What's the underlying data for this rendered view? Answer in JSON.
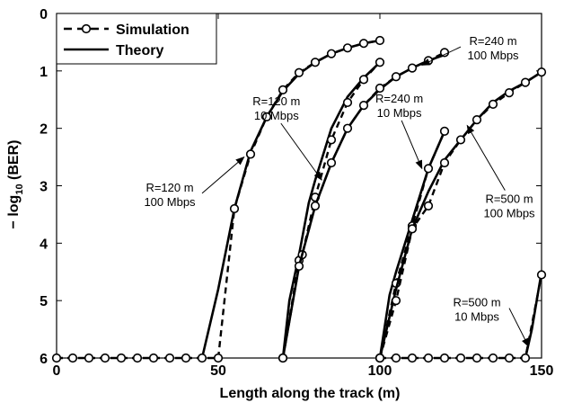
{
  "chart_data": {
    "type": "line",
    "title": "",
    "xlabel": "Length along the track (m)",
    "ylabel_prefix": "− log",
    "ylabel_sub": "10",
    "ylabel_suffix": " (BER)",
    "xlim": [
      0,
      150
    ],
    "ylim": [
      0,
      6
    ],
    "y_inverted": true,
    "x_ticks": [
      "0",
      "50",
      "100",
      "150"
    ],
    "y_ticks": [
      "0",
      "1",
      "2",
      "3",
      "4",
      "5",
      "6"
    ],
    "grid": false,
    "legend": {
      "placement": "top-left",
      "entries": [
        {
          "label": "Simulation",
          "style": "dashed-circle"
        },
        {
          "label": "Theory",
          "style": "solid"
        }
      ]
    },
    "series": [
      {
        "group": "R=120 m, 100 Mbps",
        "theory": [
          [
            45,
            6
          ],
          [
            50,
            4.8
          ],
          [
            55,
            3.4
          ],
          [
            58,
            2.8
          ],
          [
            60,
            2.4
          ],
          [
            65,
            1.8
          ],
          [
            70,
            1.35
          ],
          [
            75,
            1.05
          ],
          [
            80,
            0.85
          ],
          [
            85,
            0.7
          ],
          [
            90,
            0.6
          ],
          [
            95,
            0.52
          ],
          [
            100,
            0.47
          ]
        ],
        "simulation": [
          [
            0,
            6
          ],
          [
            5,
            6
          ],
          [
            10,
            6
          ],
          [
            15,
            6
          ],
          [
            20,
            6
          ],
          [
            25,
            6
          ],
          [
            30,
            6
          ],
          [
            35,
            6
          ],
          [
            40,
            6
          ],
          [
            45,
            6
          ],
          [
            50,
            6
          ],
          [
            55,
            3.4
          ],
          [
            60,
            2.45
          ],
          [
            65,
            1.8
          ],
          [
            70,
            1.33
          ],
          [
            75,
            1.03
          ],
          [
            80,
            0.85
          ],
          [
            85,
            0.7
          ],
          [
            90,
            0.6
          ],
          [
            95,
            0.52
          ],
          [
            100,
            0.47
          ]
        ]
      },
      {
        "group": "R=120 m, 10 Mbps",
        "theory": [
          [
            70,
            6
          ],
          [
            72,
            5
          ],
          [
            75,
            4.2
          ],
          [
            78,
            3.3
          ],
          [
            80,
            2.9
          ],
          [
            85,
            2.0
          ],
          [
            90,
            1.45
          ],
          [
            95,
            1.12
          ],
          [
            100,
            0.85
          ]
        ],
        "simulation": [
          [
            70,
            6
          ],
          [
            75,
            4.3
          ],
          [
            76,
            4.2
          ],
          [
            80,
            3.2
          ],
          [
            85,
            2.2
          ],
          [
            90,
            1.55
          ],
          [
            95,
            1.15
          ],
          [
            100,
            0.85
          ]
        ]
      },
      {
        "group": "R=240 m, 100 Mbps",
        "theory": [
          [
            70,
            6
          ],
          [
            75,
            4.4
          ],
          [
            80,
            3.35
          ],
          [
            85,
            2.6
          ],
          [
            90,
            2.0
          ],
          [
            95,
            1.6
          ],
          [
            100,
            1.32
          ],
          [
            105,
            1.1
          ],
          [
            110,
            0.95
          ],
          [
            115,
            0.82
          ],
          [
            120,
            0.72
          ]
        ],
        "simulation": [
          [
            70,
            6
          ],
          [
            75,
            4.4
          ],
          [
            80,
            3.35
          ],
          [
            85,
            2.6
          ],
          [
            90,
            2.0
          ],
          [
            95,
            1.6
          ],
          [
            100,
            1.3
          ],
          [
            105,
            1.1
          ],
          [
            110,
            0.95
          ],
          [
            115,
            0.82
          ],
          [
            120,
            0.68
          ]
        ]
      },
      {
        "group": "R=240 m, 10 Mbps",
        "theory": [
          [
            100,
            6
          ],
          [
            103,
            4.9
          ],
          [
            105,
            4.5
          ],
          [
            110,
            3.6
          ],
          [
            115,
            2.7
          ],
          [
            120,
            2.05
          ]
        ],
        "simulation": [
          [
            100,
            6
          ],
          [
            105,
            4.7
          ],
          [
            110,
            3.7
          ],
          [
            115,
            2.7
          ],
          [
            120,
            2.05
          ]
        ]
      },
      {
        "group": "R=500 m, 100 Mbps",
        "theory": [
          [
            100,
            6
          ],
          [
            105,
            4.8
          ],
          [
            110,
            3.75
          ],
          [
            115,
            3.1
          ],
          [
            120,
            2.55
          ],
          [
            125,
            2.2
          ],
          [
            130,
            1.85
          ],
          [
            135,
            1.55
          ],
          [
            140,
            1.35
          ],
          [
            145,
            1.2
          ],
          [
            150,
            1.02
          ]
        ],
        "simulation": [
          [
            100,
            6
          ],
          [
            105,
            5.0
          ],
          [
            110,
            3.75
          ],
          [
            115,
            3.35
          ],
          [
            120,
            2.6
          ],
          [
            125,
            2.2
          ],
          [
            130,
            1.85
          ],
          [
            135,
            1.58
          ],
          [
            140,
            1.38
          ],
          [
            145,
            1.2
          ],
          [
            150,
            1.02
          ]
        ]
      },
      {
        "group": "R=500 m, 10 Mbps",
        "theory": [
          [
            145,
            6
          ],
          [
            147,
            5.5
          ],
          [
            150,
            4.5
          ]
        ],
        "simulation": [
          [
            100,
            6
          ],
          [
            105,
            6
          ],
          [
            110,
            6
          ],
          [
            115,
            6
          ],
          [
            120,
            6
          ],
          [
            125,
            6
          ],
          [
            130,
            6
          ],
          [
            135,
            6
          ],
          [
            140,
            6
          ],
          [
            145,
            6
          ],
          [
            150,
            4.55
          ]
        ]
      }
    ],
    "annotations": [
      {
        "lines": [
          "R=120 m",
          "100 Mbps"
        ],
        "anchor": [
          35,
          3.1
        ],
        "target": [
          58,
          2.5
        ]
      },
      {
        "lines": [
          "R=120 m",
          "10 Mbps"
        ],
        "anchor": [
          68,
          1.6
        ],
        "target": [
          82,
          2.9
        ]
      },
      {
        "lines": [
          "R=240 m",
          "100 Mbps"
        ],
        "anchor": [
          135,
          0.55
        ],
        "target": [
          113,
          0.9
        ]
      },
      {
        "lines": [
          "R=240 m",
          "10 Mbps"
        ],
        "anchor": [
          106,
          1.55
        ],
        "target": [
          113,
          2.7
        ]
      },
      {
        "lines": [
          "R=500 m",
          "100 Mbps"
        ],
        "anchor": [
          140,
          3.3
        ],
        "target": [
          127,
          1.95
        ]
      },
      {
        "lines": [
          "R=500 m",
          "10 Mbps"
        ],
        "anchor": [
          130,
          5.1
        ],
        "target": [
          146,
          5.8
        ]
      }
    ]
  }
}
